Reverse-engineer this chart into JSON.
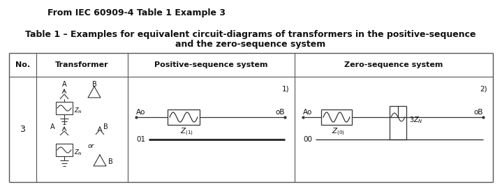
{
  "background_color": "#ffffff",
  "title_line1": "From IEC 60909-4 Table 1 Example 3",
  "subtitle_line1": "Table 1 – Examples for equivalent circuit-diagrams of transformers in the positive-sequence",
  "subtitle_line2": "and the zero-sequence system",
  "col_headers": [
    "No.",
    "Transformer",
    "Positive-sequence system",
    "Zero-sequence system"
  ],
  "row_number": "3",
  "border_color": "#555555",
  "text_color": "#111111",
  "circuit_color": "#333333"
}
